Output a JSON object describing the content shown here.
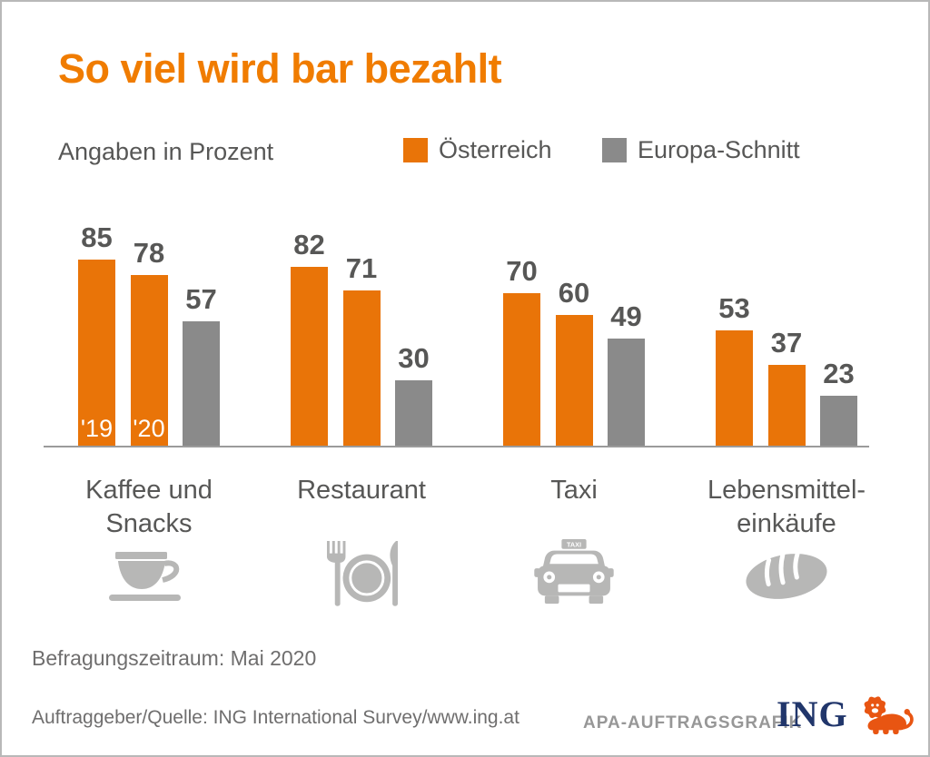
{
  "page": {
    "title": "So viel wird bar bezahlt",
    "subtitle": "Angaben in Prozent"
  },
  "legend": [
    {
      "label": "Österreich",
      "color": "#E97408"
    },
    {
      "label": "Europa-Schnitt",
      "color": "#8A8A8A"
    }
  ],
  "chart_data": {
    "type": "bar",
    "unit": "percent",
    "title": "So viel wird bar bezahlt",
    "subtitle": "Angaben in Prozent",
    "categories": [
      "Kaffee und Snacks",
      "Restaurant",
      "Taxi",
      "Lebensmitteleinkäufe"
    ],
    "category_label_lines": [
      [
        "Kaffee und",
        "Snacks"
      ],
      [
        "Restaurant"
      ],
      [
        "Taxi"
      ],
      [
        "Lebensmittel-",
        "einkäufe"
      ]
    ],
    "category_icons": [
      "coffee-cup-icon",
      "restaurant-cutlery-icon",
      "taxi-car-icon",
      "bread-loaf-icon"
    ],
    "series": [
      {
        "key": "at19",
        "name": "Österreich '19",
        "color": "#E97408",
        "values": [
          85,
          82,
          70,
          53
        ],
        "in_bar_label": "'19",
        "in_bar_label_category": 0
      },
      {
        "key": "at20",
        "name": "Österreich '20",
        "color": "#E97408",
        "values": [
          78,
          71,
          60,
          37
        ],
        "in_bar_label": "'20",
        "in_bar_label_category": 0
      },
      {
        "key": "eu",
        "name": "Europa-Schnitt",
        "color": "#8A8A8A",
        "values": [
          57,
          30,
          49,
          23
        ]
      }
    ],
    "ylim": [
      0,
      100
    ],
    "value_labels": true,
    "gridlines": false,
    "legend_position": "top-right"
  },
  "footer": {
    "survey_period": "Befragungszeitraum: Mai 2020",
    "source": "Auftraggeber/Quelle: ING International Survey/www.ing.at",
    "credit": "APA-AUFTRAGSGRAFIK",
    "logo_text": "ING"
  },
  "colors": {
    "title_orange": "#F07C00",
    "accent_orange": "#E97408",
    "bar_gray": "#8A8A8A",
    "text_dark": "#575756",
    "icon_gray": "#B7B7B6",
    "footer_gray": "#6F6E6E",
    "ing_navy": "#21366B",
    "ing_lion_orange": "#E85512"
  }
}
